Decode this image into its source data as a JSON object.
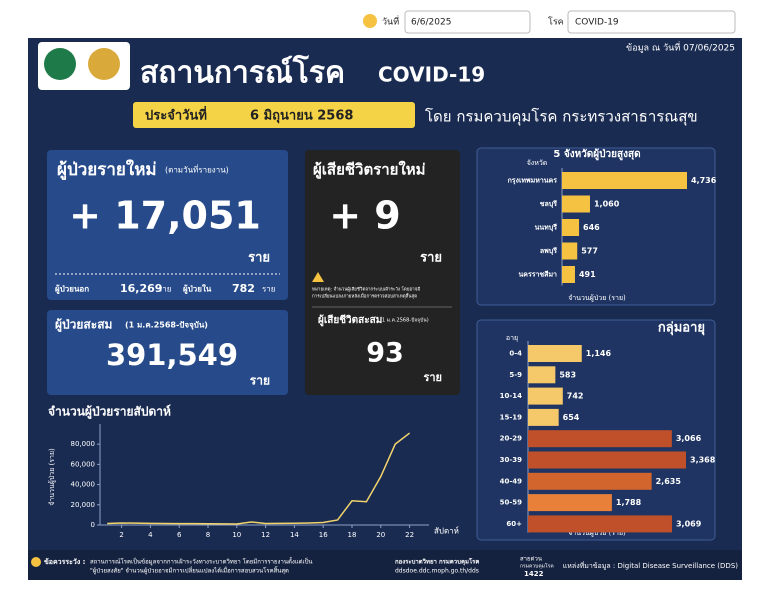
{
  "search": {
    "date_label": "วันที่",
    "date_value": "6/6/2025",
    "disease_label": "โรค",
    "disease_value": "COVID-19"
  },
  "header": {
    "title": "สถานการณ์โรค",
    "title_suffix": "COVID-19",
    "updated": "ข้อมูล ณ วันที่ 07/06/2025",
    "banner_prefix": "ประจำวันที่",
    "banner_date": "6 มิถุนายน 2568",
    "by": "โดย กรมควบคุมโรค กระทรวงสาธารณสุข"
  },
  "new_cases": {
    "title": "ผู้ป่วยรายใหม่",
    "subtitle": "(ตามวันที่รายงาน)",
    "value": "+ 17,051",
    "unit": "ราย",
    "outpatient_label": "ผู้ป่วยนอก",
    "outpatient_value": "16,269",
    "outpatient_unit": "ราย",
    "inpatient_label": "ผู้ป่วยใน",
    "inpatient_value": "782",
    "inpatient_unit": "ราย"
  },
  "cumulative": {
    "title": "ผู้ป่วยสะสม",
    "subtitle": "(1 ม.ค.2568-ปัจจุบัน)",
    "value": "391,549",
    "unit": "ราย"
  },
  "deaths": {
    "title": "ผู้เสียชีวิตรายใหม่",
    "value": "+ 9",
    "unit": "ราย",
    "note_1": "หมายเหตุ: จำนวนผู้เสียชีวิตจากระบบเฝ้าระวัง โดยอาจมี",
    "note_2": "การเปลี่ยนแปลงภายหลังเมื่อการตรวจสอบสาเหตุสิ้นสุด",
    "cumulative_title": "ผู้เสียชีวิตสะสม",
    "cumulative_subtitle": "(1 ม.ค.2568-ปัจจุบัน)",
    "cumulative_value": "93",
    "cumulative_unit": "ราย"
  },
  "footer": {
    "caution_label": "ข้อควรระวัง :",
    "caution_1": "สถานการณ์โรคเป็นข้อมูลจากการเฝ้าระวังทางระบาดวิทยา โดยมีการรายงานตั้งแต่เป็น",
    "caution_2": "\"ผู้ป่วยสงสัย\" จำนวนผู้ป่วยอาจมีการเปลี่ยนแปลงได้เมื่อการสอบสวนโรคสิ้นสุด",
    "org": "กองระบาดวิทยา กรมควบคุมโรค",
    "url": "ddsdoe.ddc.moph.go.th/dds",
    "hotline_label": "สายด่วน",
    "hotline_org": "กรมควบคุมโรค",
    "hotline": "1422",
    "source": "แหล่งที่มาข้อมูล : Digital Disease Surveillance (DDS)"
  },
  "chart_data": [
    {
      "type": "line",
      "title": "จำนวนผู้ป่วยรายสัปดาห์",
      "y_label": "จำนวนผู้ป่วย (ราย)",
      "x_label": "สัปดาห์",
      "color": "#f2d46b",
      "x": [
        1,
        2,
        3,
        4,
        5,
        6,
        7,
        8,
        9,
        10,
        11,
        12,
        13,
        14,
        15,
        16,
        17,
        18,
        19,
        20,
        21,
        22
      ],
      "values": [
        1500,
        2000,
        1800,
        1600,
        1500,
        1400,
        1300,
        1200,
        1100,
        1000,
        3000,
        1500,
        1600,
        1700,
        2000,
        2500,
        5000,
        24000,
        23000,
        48000,
        80000,
        91000
      ],
      "xlim": [
        0.5,
        23
      ],
      "xticks": [
        2,
        4,
        6,
        8,
        10,
        12,
        14,
        16,
        18,
        20,
        22
      ],
      "ylim": [
        0,
        95000
      ],
      "yticks": [
        0,
        {
          "value": 20000,
          "label": "20,000"
        },
        {
          "value": 40000,
          "label": "40,000"
        },
        {
          "value": 60000,
          "label": "60,000"
        },
        {
          "value": 80000,
          "label": "80,000"
        }
      ]
    },
    {
      "type": "barh",
      "title": "5 จังหวัดผู้ป่วยสูงสุด",
      "axis_caption": "จังหวัด",
      "x_label": "จำนวนผู้ป่วย (ราย)",
      "categories": [
        "กรุงเทพมหานคร",
        "ชลบุรี",
        "นนทบุรี",
        "ลพบุรี",
        "นครราชสีมา"
      ],
      "values": [
        4736,
        1060,
        646,
        577,
        491
      ],
      "value_labels": [
        "4,736",
        "1,060",
        "646",
        "577",
        "491"
      ],
      "colors": [
        "#f5c242",
        "#f5c242",
        "#f5c242",
        "#f5c242",
        "#f5c242"
      ]
    },
    {
      "type": "barh",
      "title": "กลุ่มอายุ",
      "axis_caption": "อายุ",
      "x_label": "จำนวนผู้ป่วย (ราย)",
      "categories": [
        "0-4",
        "5-9",
        "10-14",
        "15-19",
        "20-29",
        "30-39",
        "40-49",
        "50-59",
        "60+"
      ],
      "values": [
        1146,
        583,
        742,
        654,
        3066,
        3368,
        2635,
        1788,
        3069
      ],
      "value_labels": [
        "1,146",
        "583",
        "742",
        "654",
        "3,066",
        "3,368",
        "2,635",
        "1,788",
        "3,069"
      ],
      "colors": [
        "#f5c869",
        "#f5c869",
        "#f5c869",
        "#f5c869",
        "#c0502a",
        "#c0502a",
        "#d2652e",
        "#e8803a",
        "#c0502a"
      ]
    }
  ]
}
